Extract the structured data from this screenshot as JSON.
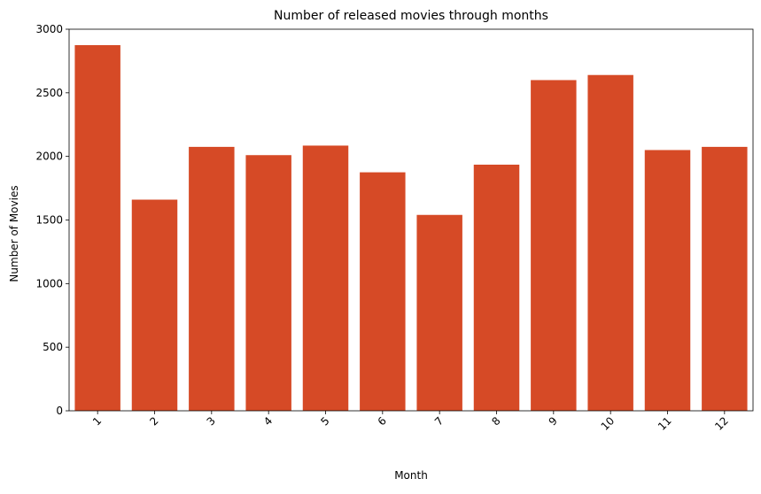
{
  "chart_data": {
    "type": "bar",
    "title": "Number of released movies through months",
    "xlabel": "Month",
    "ylabel": "Number of Movies",
    "categories": [
      "1",
      "2",
      "3",
      "4",
      "5",
      "6",
      "7",
      "8",
      "9",
      "10",
      "11",
      "12"
    ],
    "values": [
      2875,
      1660,
      2075,
      2010,
      2085,
      1875,
      1540,
      1935,
      2600,
      2640,
      2050,
      2075
    ],
    "ylim": [
      0,
      3000
    ],
    "yticks": [
      "0",
      "500",
      "1000",
      "1500",
      "2000",
      "2500",
      "3000"
    ],
    "x_tick_rotation": "45 degrees",
    "grid": false,
    "legend": "none",
    "bar_color": "#D64A26"
  }
}
